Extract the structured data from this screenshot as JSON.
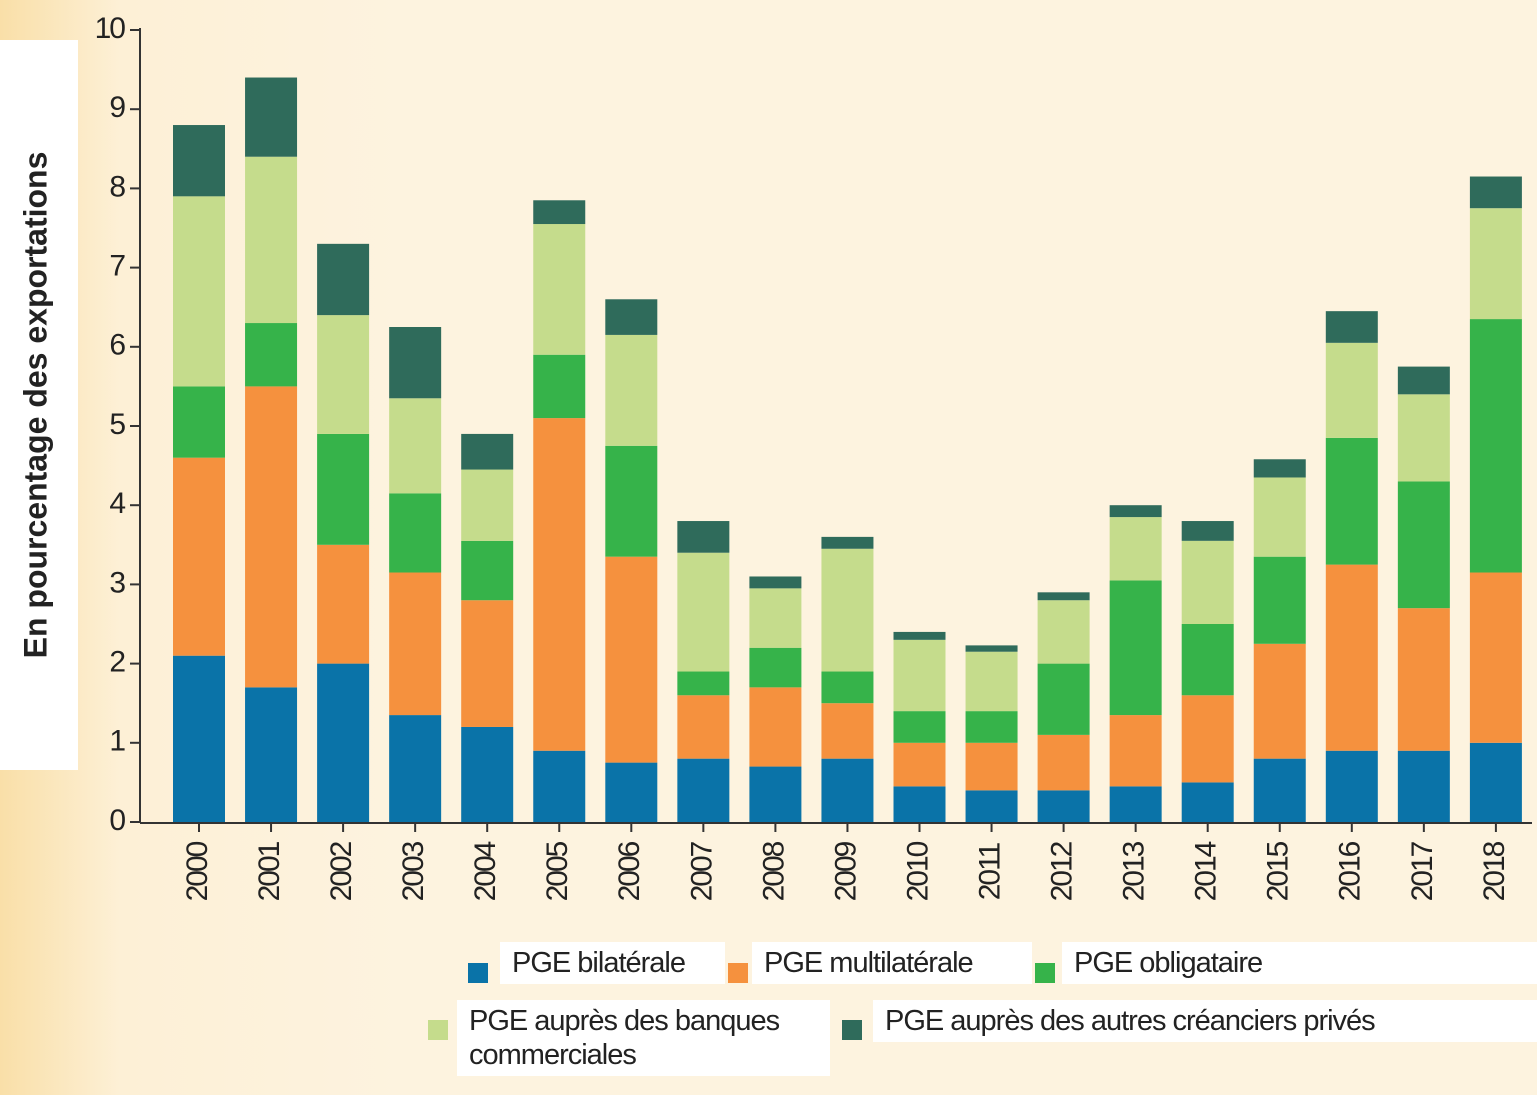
{
  "chart_data": {
    "type": "stacked_bar",
    "y_label": "En pourcentage des exportations",
    "categories": [
      "2000",
      "2001",
      "2002",
      "2003",
      "2004",
      "2005",
      "2006",
      "2007",
      "2008",
      "2009",
      "2010",
      "2011",
      "2012",
      "2013",
      "2014",
      "2015",
      "2016",
      "2017",
      "2018"
    ],
    "series": [
      {
        "name": "PGE bilatérale",
        "color": "#0a73a8",
        "values": [
          2.1,
          1.7,
          2.0,
          1.35,
          1.2,
          0.9,
          0.75,
          0.8,
          0.7,
          0.8,
          0.45,
          0.4,
          0.4,
          0.45,
          0.5,
          0.8,
          0.9,
          0.9,
          1.0
        ]
      },
      {
        "name": "PGE multilatérale",
        "color": "#f5913e",
        "values": [
          2.5,
          3.8,
          1.5,
          1.8,
          1.6,
          4.2,
          2.6,
          0.8,
          1.0,
          0.7,
          0.55,
          0.6,
          0.7,
          0.9,
          1.1,
          1.45,
          2.35,
          1.8,
          2.15
        ]
      },
      {
        "name": "PGE obligataire",
        "color": "#36b34a",
        "values": [
          0.9,
          0.8,
          1.4,
          1.0,
          0.75,
          0.8,
          1.4,
          0.3,
          0.5,
          0.4,
          0.4,
          0.4,
          0.9,
          1.7,
          0.9,
          1.1,
          1.6,
          1.6,
          3.2
        ]
      },
      {
        "name": "PGE auprès des banques commerciales",
        "color": "#c5dc8c",
        "values": [
          2.4,
          2.1,
          1.5,
          1.2,
          0.9,
          1.65,
          1.4,
          1.5,
          0.75,
          1.55,
          0.9,
          0.75,
          0.8,
          0.8,
          1.05,
          1.0,
          1.2,
          1.1,
          1.4
        ]
      },
      {
        "name": "PGE auprès des autres créanciers privés",
        "color": "#2f6b5b",
        "values": [
          0.9,
          1.0,
          0.9,
          0.9,
          0.45,
          0.3,
          0.45,
          0.4,
          0.15,
          0.15,
          0.1,
          0.08,
          0.1,
          0.15,
          0.25,
          0.23,
          0.4,
          0.35,
          0.4
        ]
      }
    ],
    "ylim": [
      0,
      10
    ],
    "yticks": [
      0,
      1,
      2,
      3,
      4,
      5,
      6,
      7,
      8,
      9,
      10
    ]
  }
}
